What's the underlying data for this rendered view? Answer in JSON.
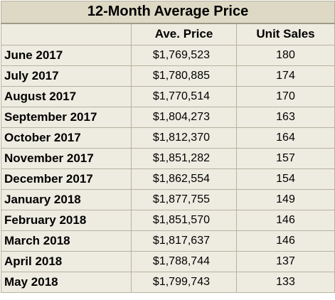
{
  "chart_data": {
    "type": "table",
    "title": "12-Month Average Price",
    "columns": [
      "",
      "Ave. Price",
      "Unit Sales"
    ],
    "rows": [
      {
        "month": "June 2017",
        "price": "$1,769,523",
        "sales": "180"
      },
      {
        "month": "July 2017",
        "price": "$1,780,885",
        "sales": "174"
      },
      {
        "month": "August 2017",
        "price": "$1,770,514",
        "sales": "170"
      },
      {
        "month": "September 2017",
        "price": "$1,804,273",
        "sales": "163"
      },
      {
        "month": "October 2017",
        "price": "$1,812,370",
        "sales": "164"
      },
      {
        "month": "November 2017",
        "price": "$1,851,282",
        "sales": "157"
      },
      {
        "month": "December 2017",
        "price": "$1,862,554",
        "sales": "154"
      },
      {
        "month": "January 2018",
        "price": "$1,877,755",
        "sales": "149"
      },
      {
        "month": "February 2018",
        "price": "$1,851,570",
        "sales": "146"
      },
      {
        "month": "March 2018",
        "price": "$1,817,637",
        "sales": "146"
      },
      {
        "month": "April 2018",
        "price": "$1,788,744",
        "sales": "137"
      },
      {
        "month": "May 2018",
        "price": "$1,799,743",
        "sales": "133"
      }
    ]
  }
}
